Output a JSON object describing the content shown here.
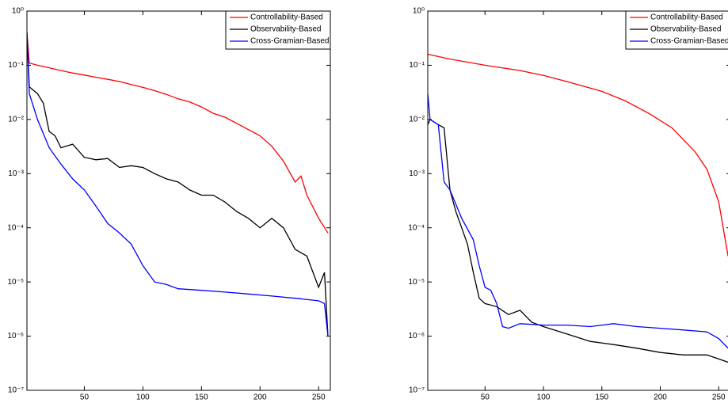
{
  "chart_data": [
    {
      "type": "line",
      "log_y": true,
      "legend": "upper right",
      "xlim": [
        1,
        260
      ],
      "ylim": [
        1e-07,
        1
      ],
      "xticks": [
        50,
        100,
        150,
        200,
        250
      ],
      "yticks": [
        {
          "value": 1e-07,
          "label": "10⁻⁷"
        },
        {
          "value": 1e-06,
          "label": "10⁻⁶"
        },
        {
          "value": 1e-05,
          "label": "10⁻⁵"
        },
        {
          "value": 0.0001,
          "label": "10⁻⁴"
        },
        {
          "value": 0.001,
          "label": "10⁻³"
        },
        {
          "value": 0.01,
          "label": "10⁻²"
        },
        {
          "value": 0.1,
          "label": "10⁻¹"
        },
        {
          "value": 1,
          "label": "10⁰"
        }
      ],
      "series": [
        {
          "name": "Controllability-Based",
          "color": "#ff0000",
          "x": [
            1,
            3,
            10,
            20,
            30,
            40,
            50,
            60,
            70,
            80,
            90,
            100,
            110,
            120,
            130,
            140,
            150,
            160,
            170,
            180,
            190,
            200,
            210,
            220,
            230,
            235,
            240,
            250,
            258
          ],
          "values": [
            0.4,
            0.11,
            0.1,
            0.09,
            0.08,
            0.072,
            0.066,
            0.06,
            0.055,
            0.05,
            0.044,
            0.039,
            0.034,
            0.029,
            0.024,
            0.021,
            0.017,
            0.013,
            0.011,
            0.0085,
            0.0065,
            0.005,
            0.0032,
            0.0017,
            0.0007,
            0.0009,
            0.0004,
            0.00015,
            8e-05
          ]
        },
        {
          "name": "Observability-Based",
          "color": "#000000",
          "x": [
            1,
            3,
            10,
            15,
            20,
            25,
            30,
            40,
            50,
            60,
            70,
            80,
            90,
            100,
            110,
            120,
            130,
            140,
            150,
            160,
            170,
            180,
            190,
            200,
            210,
            220,
            230,
            240,
            250,
            255,
            258
          ],
          "values": [
            0.4,
            0.04,
            0.03,
            0.02,
            0.006,
            0.005,
            0.003,
            0.0035,
            0.002,
            0.0018,
            0.0019,
            0.0013,
            0.0014,
            0.0013,
            0.001,
            0.0008,
            0.0007,
            0.0005,
            0.0004,
            0.0004,
            0.0003,
            0.0002,
            0.00015,
            0.0001,
            0.00015,
            0.0001,
            4e-05,
            3e-05,
            8e-06,
            1.5e-05,
            1e-06
          ]
        },
        {
          "name": "Cross-Gramian-Based",
          "color": "#0000ff",
          "x": [
            1,
            3,
            10,
            20,
            30,
            40,
            50,
            60,
            70,
            80,
            90,
            100,
            110,
            120,
            130,
            150,
            170,
            190,
            210,
            230,
            250,
            255,
            258
          ],
          "values": [
            0.4,
            0.03,
            0.01,
            0.003,
            0.0015,
            0.0008,
            0.0005,
            0.00025,
            0.00012,
            8e-05,
            5e-05,
            2e-05,
            1e-05,
            9e-06,
            7.5e-06,
            7e-06,
            6.5e-06,
            6e-06,
            5.5e-06,
            5e-06,
            4.5e-06,
            4e-06,
            1e-06
          ]
        }
      ]
    },
    {
      "type": "line",
      "log_y": true,
      "legend": "upper right",
      "xlim": [
        1,
        260
      ],
      "ylim": [
        1e-07,
        1
      ],
      "xticks": [
        50,
        100,
        150,
        200,
        250
      ],
      "yticks": [
        {
          "value": 1e-07,
          "label": "10⁻⁷"
        },
        {
          "value": 1e-06,
          "label": "10⁻⁶"
        },
        {
          "value": 1e-05,
          "label": "10⁻⁵"
        },
        {
          "value": 0.0001,
          "label": "10⁻⁴"
        },
        {
          "value": 0.001,
          "label": "10⁻³"
        },
        {
          "value": 0.01,
          "label": "10⁻²"
        },
        {
          "value": 0.1,
          "label": "10⁻¹"
        },
        {
          "value": 1,
          "label": "10⁰"
        }
      ],
      "series": [
        {
          "name": "Controllability-Based",
          "color": "#ff0000",
          "x": [
            1,
            20,
            50,
            80,
            100,
            120,
            150,
            170,
            190,
            210,
            230,
            240,
            250,
            258
          ],
          "values": [
            0.16,
            0.13,
            0.1,
            0.08,
            0.065,
            0.05,
            0.033,
            0.022,
            0.013,
            0.007,
            0.0025,
            0.0012,
            0.0003,
            3e-05
          ]
        },
        {
          "name": "Observability-Based",
          "color": "#000000",
          "x": [
            1,
            3,
            10,
            15,
            20,
            25,
            30,
            35,
            40,
            45,
            50,
            60,
            70,
            80,
            90,
            100,
            120,
            140,
            160,
            180,
            200,
            220,
            240,
            258
          ],
          "values": [
            0.008,
            0.01,
            0.008,
            0.007,
            0.0005,
            0.0002,
            0.0001,
            5e-05,
            1.5e-05,
            5e-06,
            4e-06,
            3.5e-06,
            2.5e-06,
            3e-06,
            1.8e-06,
            1.5e-06,
            1.1e-06,
            8e-07,
            7e-07,
            6e-07,
            5e-07,
            4.5e-07,
            4.5e-07,
            3.3e-07
          ]
        },
        {
          "name": "Cross-Gramian-Based",
          "color": "#0000ff",
          "x": [
            1,
            3,
            10,
            15,
            20,
            30,
            40,
            45,
            50,
            55,
            60,
            65,
            70,
            80,
            100,
            120,
            140,
            160,
            180,
            200,
            220,
            240,
            250,
            258
          ],
          "values": [
            0.03,
            0.01,
            0.008,
            0.0007,
            0.0005,
            0.00015,
            6e-05,
            2e-05,
            8e-06,
            7e-06,
            4e-06,
            1.5e-06,
            1.4e-06,
            1.7e-06,
            1.6e-06,
            1.6e-06,
            1.5e-06,
            1.7e-06,
            1.5e-06,
            1.4e-06,
            1.3e-06,
            1.2e-06,
            9e-07,
            6e-07
          ]
        }
      ]
    }
  ]
}
